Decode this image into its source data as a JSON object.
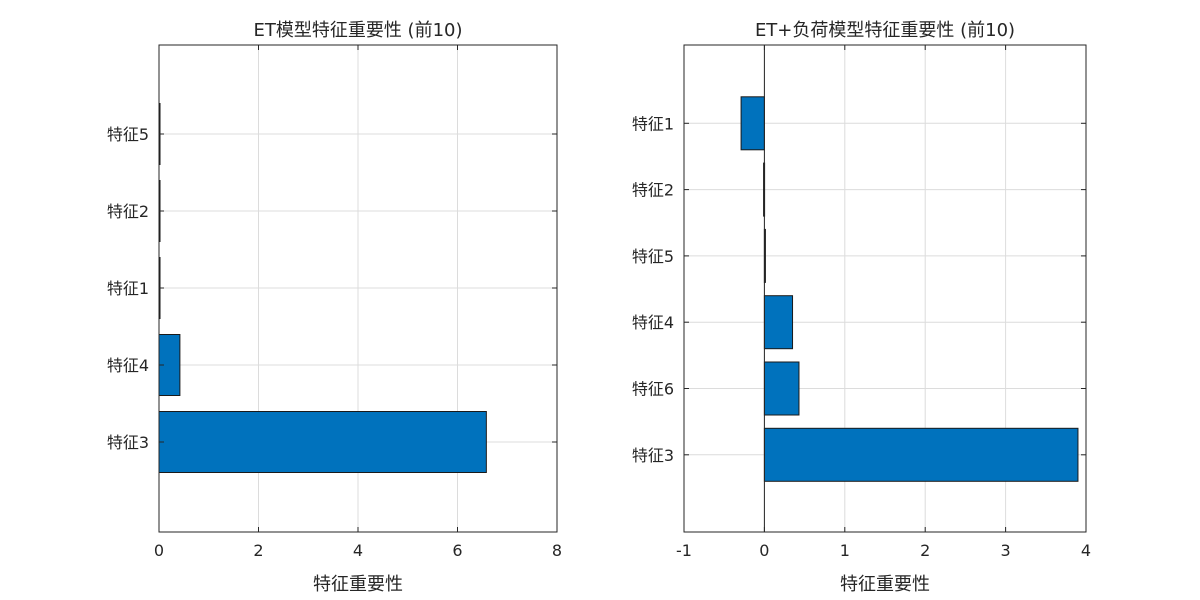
{
  "colors": {
    "bar": "#0072bd",
    "bar_edge": "#1a1a1a",
    "grid": "#dcdcdc",
    "axis": "#262626"
  },
  "chart_data": [
    {
      "type": "bar",
      "orientation": "horizontal",
      "title": "ET模型特征重要性 (前10)",
      "xlabel": "特征重要性",
      "ylabel": "",
      "xlim": [
        0,
        8
      ],
      "xticks": [
        0,
        2,
        4,
        6,
        8
      ],
      "grid": true,
      "categories": [
        "特征5",
        "特征2",
        "特征1",
        "特征4",
        "特征3"
      ],
      "values": [
        0.02,
        0.0,
        0.0,
        0.42,
        6.58
      ]
    },
    {
      "type": "bar",
      "orientation": "horizontal",
      "title": "ET+负荷模型特征重要性 (前10)",
      "xlabel": "特征重要性",
      "ylabel": "",
      "xlim": [
        -1,
        4
      ],
      "xticks": [
        -1,
        0,
        1,
        2,
        3,
        4
      ],
      "grid": true,
      "categories": [
        "特征1",
        "特征2",
        "特征5",
        "特征4",
        "特征6",
        "特征3"
      ],
      "values": [
        -0.29,
        -0.01,
        0.0,
        0.35,
        0.43,
        3.9
      ]
    }
  ]
}
